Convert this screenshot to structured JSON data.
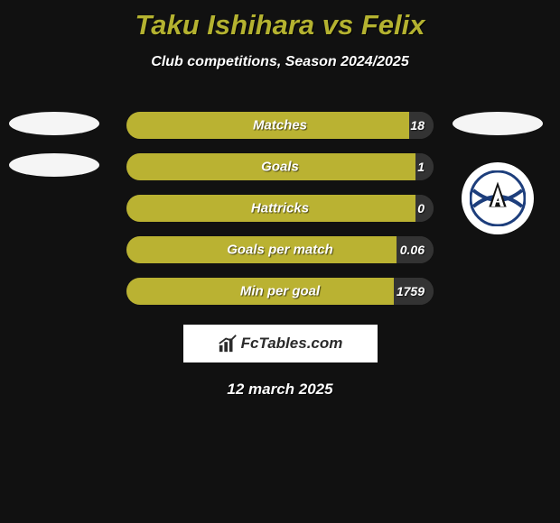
{
  "title": "Taku Ishihara vs Felix",
  "subtitle": "Club competitions, Season 2024/2025",
  "date": "12 march 2025",
  "brand": "FcTables.com",
  "colors": {
    "title_color": "#b4b230",
    "text_color": "#ffffff",
    "background": "#111111",
    "bar_left_color": "#bab232",
    "bar_right_color": "#333333",
    "brand_bg": "#ffffff",
    "brand_text": "#2b2b2b"
  },
  "bar_style": {
    "track_width": 340,
    "track_height": 30,
    "radius": 15
  },
  "stats": [
    {
      "label": "Matches",
      "left_value": "",
      "right_value": "18",
      "left_pct": 92,
      "right_pct": 8
    },
    {
      "label": "Goals",
      "left_value": "",
      "right_value": "1",
      "left_pct": 94,
      "right_pct": 6
    },
    {
      "label": "Hattricks",
      "left_value": "",
      "right_value": "0",
      "left_pct": 94,
      "right_pct": 6
    },
    {
      "label": "Goals per match",
      "left_value": "",
      "right_value": "0.06",
      "left_pct": 88,
      "right_pct": 12
    },
    {
      "label": "Min per goal",
      "left_value": "",
      "right_value": "1759",
      "left_pct": 87,
      "right_pct": 13
    }
  ],
  "avatars": {
    "left": {
      "oval1": true,
      "oval2": true,
      "logo": false
    },
    "right": {
      "oval1": true,
      "oval2": false,
      "logo": true,
      "logo_label": "A"
    }
  }
}
